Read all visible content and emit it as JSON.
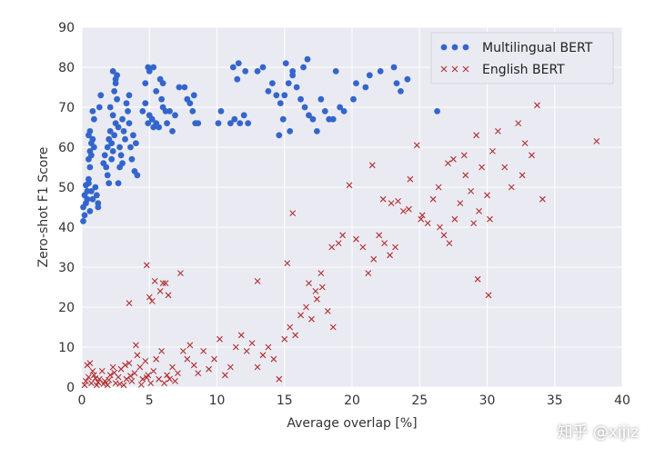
{
  "watermark": "知乎 @xijiz",
  "chart_data": {
    "type": "scatter",
    "title": "",
    "xlabel": "Average overlap [%]",
    "ylabel": "Zero-shot F1 Score",
    "xlim": [
      0,
      40
    ],
    "ylim": [
      0,
      90
    ],
    "xticks": [
      0,
      5,
      10,
      15,
      20,
      25,
      30,
      35,
      40
    ],
    "yticks": [
      0,
      10,
      20,
      30,
      40,
      50,
      60,
      70,
      80,
      90
    ],
    "grid": true,
    "legend_position": "top-right",
    "series": [
      {
        "name": "Multilingual BERT",
        "marker": "circle",
        "color": "#3366cc",
        "points": [
          [
            0.1,
            41.5
          ],
          [
            0.2,
            43
          ],
          [
            0.1,
            45
          ],
          [
            0.3,
            46
          ],
          [
            0.2,
            48
          ],
          [
            0.4,
            49
          ],
          [
            0.3,
            50.5
          ],
          [
            0.5,
            52
          ],
          [
            0.4,
            47
          ],
          [
            0.6,
            44
          ],
          [
            0.5,
            51
          ],
          [
            0.7,
            49
          ],
          [
            0.8,
            47
          ],
          [
            0.6,
            55
          ],
          [
            0.5,
            57
          ],
          [
            0.6,
            59
          ],
          [
            0.7,
            61
          ],
          [
            0.5,
            63
          ],
          [
            0.6,
            64
          ],
          [
            0.8,
            62
          ],
          [
            0.7,
            58
          ],
          [
            0.9,
            60
          ],
          [
            1.0,
            50
          ],
          [
            1.1,
            48
          ],
          [
            1.2,
            46
          ],
          [
            0.9,
            67
          ],
          [
            0.8,
            69
          ],
          [
            1.3,
            70
          ],
          [
            1.4,
            73
          ],
          [
            1.2,
            45
          ],
          [
            1.6,
            56
          ],
          [
            1.8,
            55
          ],
          [
            1.7,
            58
          ],
          [
            1.9,
            60
          ],
          [
            2.0,
            62
          ],
          [
            2.1,
            64
          ],
          [
            2.2,
            61
          ],
          [
            2.3,
            59
          ],
          [
            1.9,
            53
          ],
          [
            2.0,
            51
          ],
          [
            2.2,
            57
          ],
          [
            2.4,
            63
          ],
          [
            2.5,
            66
          ],
          [
            2.3,
            68
          ],
          [
            2.1,
            70
          ],
          [
            2.6,
            72
          ],
          [
            2.4,
            74
          ],
          [
            2.5,
            76
          ],
          [
            2.6,
            78
          ],
          [
            2.5,
            77
          ],
          [
            2.7,
            65
          ],
          [
            2.8,
            60
          ],
          [
            2.9,
            58
          ],
          [
            3.0,
            56
          ],
          [
            2.8,
            55
          ],
          [
            2.7,
            51
          ],
          [
            3.1,
            64
          ],
          [
            3.2,
            62
          ],
          [
            3.0,
            67
          ],
          [
            3.3,
            71
          ],
          [
            3.4,
            69
          ],
          [
            3.5,
            66
          ],
          [
            3.6,
            60
          ],
          [
            3.7,
            57
          ],
          [
            3.9,
            54
          ],
          [
            4.1,
            53
          ],
          [
            3.8,
            63
          ],
          [
            4.0,
            61
          ],
          [
            3.5,
            73
          ],
          [
            2.3,
            79
          ],
          [
            4.5,
            69
          ],
          [
            4.7,
            71
          ],
          [
            4.9,
            66
          ],
          [
            5.0,
            68
          ],
          [
            5.2,
            67
          ],
          [
            5.3,
            65
          ],
          [
            5.5,
            66
          ],
          [
            5.7,
            65
          ],
          [
            5.9,
            72
          ],
          [
            6.0,
            70
          ],
          [
            6.2,
            69
          ],
          [
            6.3,
            66
          ],
          [
            6.5,
            69
          ],
          [
            6.7,
            64
          ],
          [
            6.9,
            68
          ],
          [
            4.7,
            76
          ],
          [
            5.0,
            79
          ],
          [
            5.5,
            74
          ],
          [
            5.8,
            77
          ],
          [
            6.0,
            76
          ],
          [
            4.9,
            80
          ],
          [
            5.3,
            80
          ],
          [
            7.2,
            75
          ],
          [
            7.6,
            75
          ],
          [
            7.8,
            72
          ],
          [
            8.0,
            71
          ],
          [
            8.2,
            69
          ],
          [
            8.4,
            66
          ],
          [
            8.6,
            66
          ],
          [
            8.3,
            73
          ],
          [
            10.1,
            66
          ],
          [
            10.3,
            69
          ],
          [
            11.0,
            66
          ],
          [
            11.3,
            67
          ],
          [
            11.7,
            66
          ],
          [
            12.0,
            68
          ],
          [
            12.3,
            66
          ],
          [
            11.2,
            80
          ],
          [
            11.6,
            81
          ],
          [
            12.1,
            79
          ],
          [
            13.0,
            79
          ],
          [
            13.4,
            80
          ],
          [
            11.5,
            77
          ],
          [
            13.8,
            74
          ],
          [
            14.1,
            76
          ],
          [
            14.4,
            73
          ],
          [
            14.7,
            71
          ],
          [
            15.0,
            73
          ],
          [
            15.3,
            76
          ],
          [
            15.6,
            78
          ],
          [
            15.9,
            75
          ],
          [
            16.2,
            72
          ],
          [
            16.5,
            70
          ],
          [
            16.8,
            68
          ],
          [
            17.1,
            67
          ],
          [
            17.4,
            64
          ],
          [
            17.7,
            72
          ],
          [
            18.0,
            69
          ],
          [
            18.3,
            67
          ],
          [
            18.6,
            67
          ],
          [
            14.6,
            63
          ],
          [
            15.4,
            64
          ],
          [
            15.1,
            81
          ],
          [
            15.6,
            79
          ],
          [
            16.7,
            82
          ],
          [
            16.4,
            80
          ],
          [
            18.8,
            79
          ],
          [
            19.1,
            70
          ],
          [
            19.4,
            69
          ],
          [
            20.1,
            72
          ],
          [
            21.0,
            75
          ],
          [
            21.3,
            78
          ],
          [
            22.1,
            79
          ],
          [
            23.1,
            80
          ],
          [
            23.3,
            76
          ],
          [
            23.6,
            74
          ],
          [
            24.1,
            77
          ],
          [
            26.3,
            69
          ],
          [
            20.3,
            76
          ],
          [
            14.9,
            67
          ]
        ]
      },
      {
        "name": "English BERT",
        "marker": "x",
        "color": "#b03030",
        "points": [
          [
            0.2,
            0.5
          ],
          [
            0.3,
            1.5
          ],
          [
            0.5,
            2.5
          ],
          [
            0.7,
            1
          ],
          [
            0.9,
            3
          ],
          [
            1.1,
            0.5
          ],
          [
            1.3,
            2
          ],
          [
            1.5,
            4
          ],
          [
            1.7,
            1.5
          ],
          [
            1.9,
            0.5
          ],
          [
            2.1,
            3
          ],
          [
            2.3,
            5
          ],
          [
            2.5,
            1
          ],
          [
            2.7,
            2.5
          ],
          [
            2.9,
            4.5
          ],
          [
            3.1,
            0.5
          ],
          [
            3.3,
            2
          ],
          [
            3.5,
            6
          ],
          [
            3.7,
            1.5
          ],
          [
            3.9,
            3.5
          ],
          [
            4.1,
            8
          ],
          [
            4.3,
            5
          ],
          [
            4.5,
            2
          ],
          [
            4.7,
            6.5
          ],
          [
            4.9,
            3
          ],
          [
            5.1,
            1
          ],
          [
            5.3,
            4
          ],
          [
            5.5,
            7
          ],
          [
            5.7,
            2
          ],
          [
            5.9,
            9
          ],
          [
            6.1,
            1
          ],
          [
            6.3,
            3
          ],
          [
            6.5,
            2
          ],
          [
            6.7,
            5
          ],
          [
            6.9,
            1.5
          ],
          [
            7.1,
            3.5
          ],
          [
            0.4,
            5.5
          ],
          [
            0.8,
            4
          ],
          [
            1.2,
            1.2
          ],
          [
            1.6,
            0.8
          ],
          [
            2.0,
            1.8
          ],
          [
            2.4,
            3.6
          ],
          [
            0.6,
            6
          ],
          [
            1.0,
            2.2
          ],
          [
            2.8,
            0.8
          ],
          [
            3.2,
            5.5
          ],
          [
            3.6,
            2.8
          ],
          [
            4.0,
            10.5
          ],
          [
            4.4,
            0.6
          ],
          [
            4.8,
            2.4
          ],
          [
            6.0,
            26
          ],
          [
            5.2,
            21.5
          ],
          [
            5.4,
            26.5
          ],
          [
            5.8,
            24
          ],
          [
            6.2,
            26
          ],
          [
            7.3,
            28.5
          ],
          [
            3.5,
            21
          ],
          [
            4.8,
            30.5
          ],
          [
            5.0,
            22.5
          ],
          [
            6.4,
            23
          ],
          [
            7.5,
            9
          ],
          [
            7.8,
            7
          ],
          [
            8.0,
            10.5
          ],
          [
            8.3,
            5.5
          ],
          [
            8.6,
            3.5
          ],
          [
            9.0,
            9
          ],
          [
            9.4,
            4.5
          ],
          [
            9.8,
            7
          ],
          [
            10.2,
            12
          ],
          [
            10.6,
            3
          ],
          [
            11.0,
            5
          ],
          [
            11.4,
            10
          ],
          [
            11.8,
            13
          ],
          [
            12.2,
            9
          ],
          [
            12.6,
            11
          ],
          [
            13.0,
            5
          ],
          [
            13.4,
            8
          ],
          [
            13.8,
            10
          ],
          [
            14.2,
            7
          ],
          [
            14.6,
            2
          ],
          [
            15.0,
            12
          ],
          [
            15.4,
            15
          ],
          [
            15.8,
            13
          ],
          [
            16.2,
            18
          ],
          [
            16.6,
            20
          ],
          [
            17.0,
            17
          ],
          [
            17.4,
            22
          ],
          [
            17.8,
            25
          ],
          [
            18.2,
            19
          ],
          [
            18.6,
            15
          ],
          [
            13.0,
            26.5
          ],
          [
            15.2,
            31
          ],
          [
            15.6,
            43.5
          ],
          [
            16.8,
            26
          ],
          [
            17.3,
            24
          ],
          [
            17.7,
            28.5
          ],
          [
            18.5,
            35
          ],
          [
            19.0,
            36
          ],
          [
            19.3,
            38
          ],
          [
            19.8,
            50.5
          ],
          [
            20.3,
            37
          ],
          [
            20.8,
            35
          ],
          [
            21.2,
            28.5
          ],
          [
            21.6,
            32
          ],
          [
            22.0,
            38
          ],
          [
            22.4,
            36
          ],
          [
            22.8,
            33
          ],
          [
            23.2,
            35
          ],
          [
            21.5,
            55.5
          ],
          [
            22.3,
            47
          ],
          [
            22.9,
            46
          ],
          [
            23.4,
            46.5
          ],
          [
            23.8,
            44
          ],
          [
            24.3,
            52
          ],
          [
            24.8,
            60.5
          ],
          [
            25.2,
            43
          ],
          [
            25.6,
            41
          ],
          [
            26.0,
            47
          ],
          [
            26.4,
            50
          ],
          [
            26.8,
            38
          ],
          [
            27.2,
            36
          ],
          [
            27.6,
            42
          ],
          [
            28.0,
            46
          ],
          [
            28.4,
            53
          ],
          [
            28.8,
            49
          ],
          [
            29.2,
            63
          ],
          [
            29.6,
            55
          ],
          [
            30.0,
            48
          ],
          [
            30.4,
            59
          ],
          [
            30.8,
            64
          ],
          [
            27.1,
            56
          ],
          [
            27.5,
            57
          ],
          [
            28.3,
            58
          ],
          [
            29.0,
            41
          ],
          [
            29.4,
            44
          ],
          [
            30.2,
            42
          ],
          [
            31.3,
            55
          ],
          [
            31.8,
            50
          ],
          [
            32.3,
            66
          ],
          [
            32.8,
            61
          ],
          [
            33.3,
            58
          ],
          [
            33.7,
            70.5
          ],
          [
            34.1,
            47
          ],
          [
            32.6,
            53
          ],
          [
            30.1,
            23
          ],
          [
            29.3,
            27
          ],
          [
            26.5,
            40
          ],
          [
            25.1,
            42
          ],
          [
            38.1,
            61.5
          ],
          [
            24.2,
            44.5
          ]
        ]
      }
    ]
  }
}
